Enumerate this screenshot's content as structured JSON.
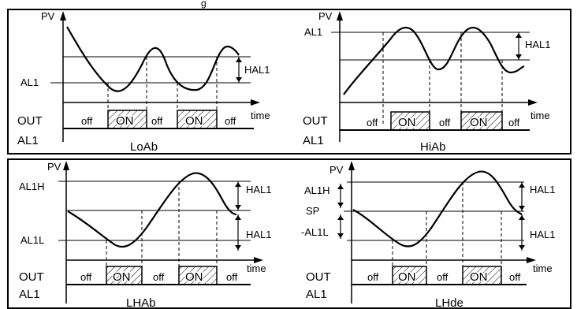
{
  "labels": {
    "pv": "PV",
    "time": "time",
    "out": "OUT",
    "al1": "AL1",
    "hal1": "HAL1",
    "off": "off",
    "on": "ON",
    "al1h": "AL1H",
    "al1l": "AL1L",
    "sp": "SP",
    "minus_al1l": "-AL1L"
  },
  "modes": {
    "loab": "LoAb",
    "hiab": "HiAb",
    "lhab": "LHAb",
    "lhde": "LHde"
  },
  "top_title_fragment": "g"
}
